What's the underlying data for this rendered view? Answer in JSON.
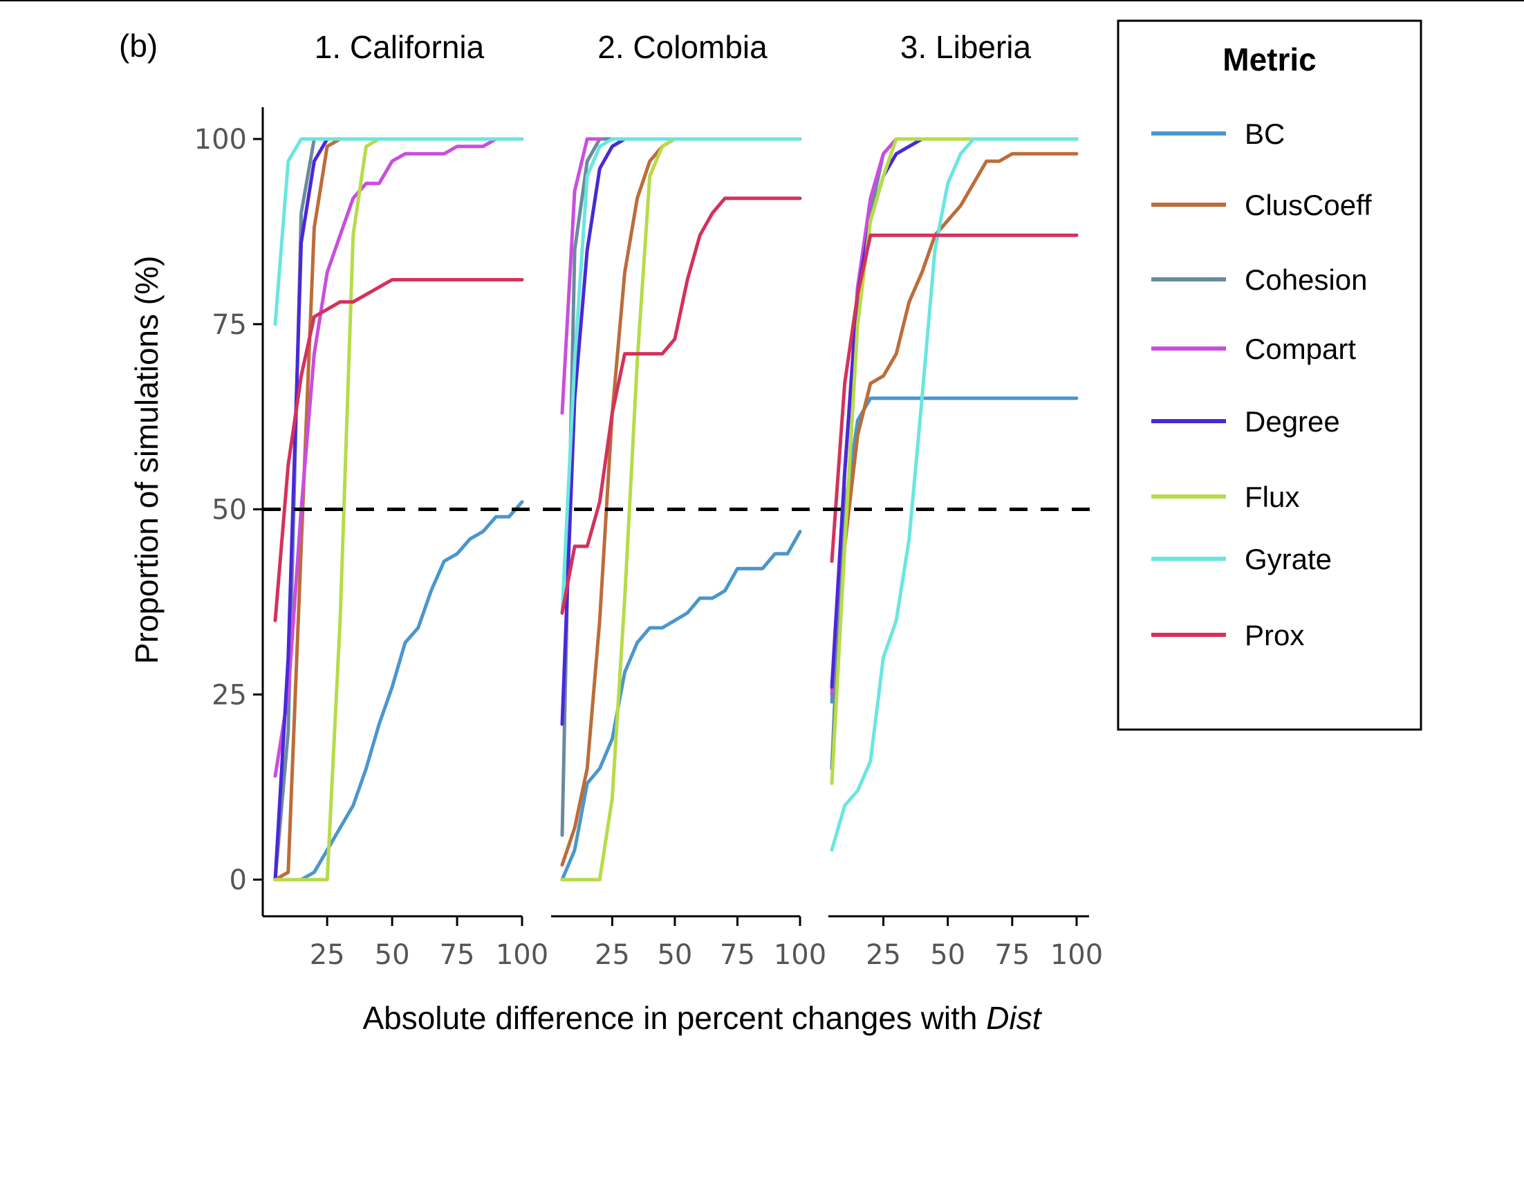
{
  "panel_label": "(b)",
  "y_axis_label": "Proportion of simulations (%)",
  "x_axis_label_prefix": "Absolute difference in percent changes with ",
  "x_axis_label_italic": "Dist",
  "legend": {
    "title": "Metric",
    "entries": [
      {
        "name": "BC",
        "color": "#4a96cd"
      },
      {
        "name": "ClusCoeff",
        "color": "#bd6c39"
      },
      {
        "name": "Cohesion",
        "color": "#6a8aa0"
      },
      {
        "name": "Compart",
        "color": "#c94ede"
      },
      {
        "name": "Degree",
        "color": "#4a28d8"
      },
      {
        "name": "Flux",
        "color": "#b6dc48"
      },
      {
        "name": "Gyrate",
        "color": "#6ae6e0"
      },
      {
        "name": "Prox",
        "color": "#d3325c"
      }
    ]
  },
  "chart_data": [
    {
      "type": "line",
      "title": "1. California",
      "xlabel": "Absolute difference in percent changes with Dist",
      "ylabel": "Proportion of simulations (%)",
      "xlim": [
        0,
        100
      ],
      "ylim": [
        0,
        100
      ],
      "xticks": [
        25,
        50,
        75,
        100
      ],
      "yticks": [
        0,
        25,
        50,
        75,
        100
      ],
      "reference_line": {
        "y": 50,
        "style": "dashed"
      },
      "series": [
        {
          "name": "BC",
          "x": [
            5,
            10,
            15,
            20,
            25,
            30,
            35,
            40,
            45,
            50,
            55,
            60,
            65,
            70,
            75,
            80,
            85,
            90,
            95,
            100
          ],
          "y": [
            0,
            0,
            0,
            1,
            4,
            7,
            10,
            15,
            21,
            26,
            32,
            34,
            39,
            43,
            44,
            46,
            47,
            49,
            49,
            51
          ]
        },
        {
          "name": "ClusCoeff",
          "x": [
            5,
            10,
            15,
            20,
            25,
            30,
            100
          ],
          "y": [
            0,
            1,
            45,
            88,
            99,
            100,
            100
          ]
        },
        {
          "name": "Cohesion",
          "x": [
            5,
            10,
            15,
            20,
            100
          ],
          "y": [
            0,
            20,
            90,
            100,
            100
          ]
        },
        {
          "name": "Compart",
          "x": [
            5,
            10,
            15,
            20,
            25,
            30,
            35,
            40,
            45,
            50,
            55,
            60,
            65,
            70,
            75,
            80,
            85,
            90,
            95,
            100
          ],
          "y": [
            14,
            25,
            50,
            71,
            82,
            87,
            92,
            94,
            94,
            97,
            98,
            98,
            98,
            98,
            99,
            99,
            99,
            100,
            100,
            100
          ]
        },
        {
          "name": "Degree",
          "x": [
            5,
            10,
            15,
            20,
            25,
            100
          ],
          "y": [
            0,
            30,
            86,
            97,
            100,
            100
          ]
        },
        {
          "name": "Flux",
          "x": [
            5,
            10,
            15,
            20,
            25,
            30,
            35,
            40,
            45,
            100
          ],
          "y": [
            0,
            0,
            0,
            0,
            0,
            35,
            87,
            99,
            100,
            100
          ]
        },
        {
          "name": "Gyrate",
          "x": [
            5,
            10,
            15,
            100
          ],
          "y": [
            75,
            97,
            100,
            100
          ]
        },
        {
          "name": "Prox",
          "x": [
            5,
            10,
            15,
            20,
            25,
            30,
            35,
            40,
            45,
            50,
            100
          ],
          "y": [
            35,
            56,
            68,
            76,
            77,
            78,
            78,
            79,
            80,
            81,
            81
          ]
        }
      ]
    },
    {
      "type": "line",
      "title": "2. Colombia",
      "xlabel": "Absolute difference in percent changes with Dist",
      "ylabel": "Proportion of simulations (%)",
      "xlim": [
        0,
        100
      ],
      "ylim": [
        0,
        100
      ],
      "xticks": [
        25,
        50,
        75,
        100
      ],
      "yticks": [
        0,
        25,
        50,
        75,
        100
      ],
      "reference_line": {
        "y": 50,
        "style": "dashed"
      },
      "series": [
        {
          "name": "BC",
          "x": [
            5,
            10,
            15,
            20,
            25,
            30,
            35,
            40,
            45,
            50,
            55,
            60,
            65,
            70,
            75,
            80,
            85,
            90,
            95,
            100
          ],
          "y": [
            0,
            4,
            13,
            15,
            19,
            28,
            32,
            34,
            34,
            35,
            36,
            38,
            38,
            39,
            42,
            42,
            42,
            44,
            44,
            47
          ]
        },
        {
          "name": "ClusCoeff",
          "x": [
            5,
            10,
            15,
            20,
            25,
            30,
            35,
            40,
            45,
            50,
            100
          ],
          "y": [
            2,
            7,
            15,
            35,
            63,
            82,
            92,
            97,
            99,
            100,
            100
          ]
        },
        {
          "name": "Cohesion",
          "x": [
            5,
            10,
            15,
            20,
            100
          ],
          "y": [
            6,
            85,
            97,
            100,
            100
          ]
        },
        {
          "name": "Compart",
          "x": [
            5,
            10,
            15,
            20
          ],
          "y": [
            63,
            93,
            100,
            100
          ]
        },
        {
          "name": "Degree",
          "x": [
            5,
            10,
            15,
            20,
            25,
            30,
            100
          ],
          "y": [
            21,
            65,
            85,
            96,
            99,
            100,
            100
          ]
        },
        {
          "name": "Flux",
          "x": [
            5,
            10,
            15,
            20,
            25,
            30,
            35,
            40,
            45,
            50,
            100
          ],
          "y": [
            0,
            0,
            0,
            0,
            11,
            38,
            70,
            95,
            99,
            100,
            100
          ]
        },
        {
          "name": "Gyrate",
          "x": [
            5,
            10,
            15,
            20,
            25,
            100
          ],
          "y": [
            36,
            70,
            95,
            99,
            100,
            100
          ]
        },
        {
          "name": "Prox",
          "x": [
            5,
            10,
            15,
            20,
            25,
            30,
            35,
            40,
            45,
            50,
            55,
            60,
            65,
            70,
            75,
            80,
            85,
            90,
            95,
            100
          ],
          "y": [
            36,
            45,
            45,
            51,
            63,
            71,
            71,
            71,
            71,
            73,
            81,
            87,
            90,
            92,
            92,
            92,
            92,
            92,
            92,
            92
          ]
        }
      ]
    },
    {
      "type": "line",
      "title": "3. Liberia",
      "xlabel": "Absolute difference in percent changes with Dist",
      "ylabel": "Proportion of simulations (%)",
      "xlim": [
        0,
        100
      ],
      "ylim": [
        0,
        100
      ],
      "xticks": [
        25,
        50,
        75,
        100
      ],
      "yticks": [
        0,
        25,
        50,
        75,
        100
      ],
      "reference_line": {
        "y": 50,
        "style": "dashed"
      },
      "series": [
        {
          "name": "BC",
          "x": [
            5,
            10,
            15,
            20,
            25,
            100
          ],
          "y": [
            24,
            50,
            62,
            65,
            65,
            65
          ]
        },
        {
          "name": "ClusCoeff",
          "x": [
            5,
            10,
            15,
            20,
            25,
            30,
            35,
            40,
            45,
            50,
            55,
            60,
            65,
            70,
            75,
            80,
            85,
            90,
            95,
            100
          ],
          "y": [
            15,
            45,
            60,
            67,
            68,
            71,
            78,
            82,
            87,
            89,
            91,
            94,
            97,
            97,
            98,
            98,
            98,
            98,
            98,
            98
          ]
        },
        {
          "name": "Cohesion",
          "x": [
            5,
            10,
            15,
            20,
            25,
            30,
            35,
            100
          ],
          "y": [
            15,
            55,
            80,
            90,
            98,
            100,
            100,
            100
          ]
        },
        {
          "name": "Compart",
          "x": [
            5,
            10,
            15,
            20,
            25,
            30,
            100
          ],
          "y": [
            25,
            55,
            80,
            92,
            98,
            100,
            100
          ]
        },
        {
          "name": "Degree",
          "x": [
            5,
            10,
            15,
            20,
            25,
            30,
            35,
            40,
            100
          ],
          "y": [
            26,
            55,
            79,
            89,
            95,
            98,
            99,
            100,
            100
          ]
        },
        {
          "name": "Flux",
          "x": [
            5,
            10,
            15,
            20,
            25,
            30,
            35,
            100
          ],
          "y": [
            13,
            45,
            75,
            89,
            95,
            100,
            100,
            100
          ]
        },
        {
          "name": "Gyrate",
          "x": [
            5,
            10,
            15,
            20,
            25,
            30,
            35,
            40,
            45,
            50,
            55,
            60,
            100
          ],
          "y": [
            4,
            10,
            12,
            16,
            30,
            35,
            46,
            65,
            85,
            94,
            98,
            100,
            100
          ]
        },
        {
          "name": "Prox",
          "x": [
            5,
            10,
            15,
            20,
            25,
            100
          ],
          "y": [
            43,
            67,
            79,
            87,
            87,
            87
          ]
        }
      ]
    }
  ]
}
